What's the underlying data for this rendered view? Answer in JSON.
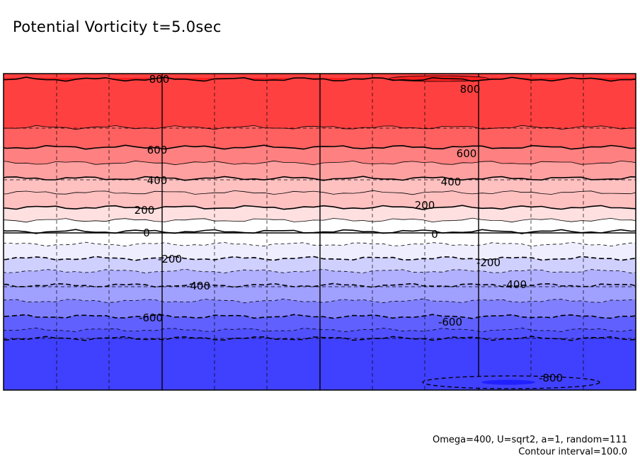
{
  "chart_data": {
    "type": "contour",
    "title": "Potential Vorticity t=5.0sec",
    "footer": [
      "Omega=400, U=sqrt2, a=1, random=111",
      "Contour interval=100.0"
    ],
    "contour_interval": 100.0,
    "levels": [
      -800,
      -700,
      -600,
      -500,
      -400,
      -300,
      -200,
      -100,
      0,
      100,
      200,
      300,
      400,
      500,
      600,
      700,
      800
    ],
    "fill_colors": {
      "900": "#ff2020",
      "800": "#ff4040",
      "700": "#ff6060",
      "600": "#ff8080",
      "500": "#ffa0a0",
      "400": "#ffc0c0",
      "300": "#ffc0c0",
      "200": "#ffe0e0",
      "100": "#ffffff",
      "0": "#ffffff",
      "-100": "#eeeeff",
      "-200": "#d0d0ff",
      "-300": "#b0b0ff",
      "-400": "#a0a0ff",
      "-500": "#8080ff",
      "-600": "#6060ff",
      "-700": "#5050ff",
      "-800": "#4040ff",
      "-900": "#2020ff"
    },
    "contour_labels": [
      {
        "text": "800",
        "value": 800
      },
      {
        "text": "800",
        "value": 800
      },
      {
        "text": "600",
        "value": 600
      },
      {
        "text": "600",
        "value": 600
      },
      {
        "text": "400",
        "value": 400
      },
      {
        "text": "400",
        "value": 400
      },
      {
        "text": "200",
        "value": 200
      },
      {
        "text": "200",
        "value": 200
      },
      {
        "text": "0",
        "value": 0
      },
      {
        "text": "0",
        "value": 0
      },
      {
        "text": "-200",
        "value": -200
      },
      {
        "text": "-200",
        "value": -200
      },
      {
        "text": "-400",
        "value": -400
      },
      {
        "text": "-400",
        "value": -400
      },
      {
        "text": "-600",
        "value": -600
      },
      {
        "text": "-600",
        "value": -600
      },
      {
        "text": "-800",
        "value": -800
      }
    ],
    "grid": true,
    "negative_contours": "dashed",
    "positive_contours": "solid"
  }
}
